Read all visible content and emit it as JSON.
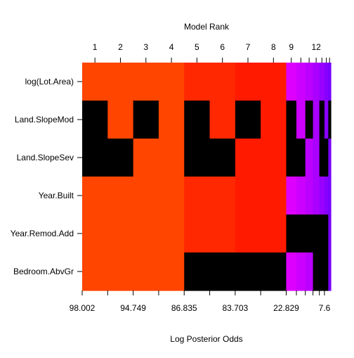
{
  "chart_data": {
    "type": "heatmap",
    "title": "",
    "xlabel_top": "Model Rank",
    "xlabel_bottom": "Log Posterior Odds",
    "ylabel": "",
    "variables": [
      "log(Lot.Area)",
      "Land.SlopeMod",
      "Land.SlopeSev",
      "Year.Built",
      "Year.Remod.Add",
      "Bedroom.AbvGr"
    ],
    "top_ticks": [
      {
        "label": "1",
        "pos": 0.5
      },
      {
        "label": "2",
        "pos": 1.5
      },
      {
        "label": "3",
        "pos": 2.5
      },
      {
        "label": "4",
        "pos": 3.5
      },
      {
        "label": "5",
        "pos": 4.5
      },
      {
        "label": "6",
        "pos": 5.5
      },
      {
        "label": "7",
        "pos": 6.5
      },
      {
        "label": "8",
        "pos": 7.5
      },
      {
        "label": "9",
        "pos": 8.5
      },
      {
        "label": "",
        "pos": 9.5
      },
      {
        "label": "",
        "pos": 10.5
      },
      {
        "label": "12",
        "pos": 11.5
      },
      {
        "label": "",
        "pos": 12.5
      },
      {
        "label": "",
        "pos": 13.5
      },
      {
        "label": "",
        "pos": 14.5
      }
    ],
    "bottom_ticks": [
      {
        "label": "98.002",
        "pos": 0
      },
      {
        "label": "",
        "pos": 1
      },
      {
        "label": "94.749",
        "pos": 2
      },
      {
        "label": "",
        "pos": 3
      },
      {
        "label": "86.835",
        "pos": 4
      },
      {
        "label": "",
        "pos": 5
      },
      {
        "label": "83.703",
        "pos": 6
      },
      {
        "label": "",
        "pos": 7
      },
      {
        "label": "22.829",
        "pos": 8
      },
      {
        "label": "",
        "pos": 9
      },
      {
        "label": "",
        "pos": 10
      },
      {
        "label": "",
        "pos": 11
      },
      {
        "label": "",
        "pos": 12
      },
      {
        "label": "7.6",
        "pos": 13
      }
    ],
    "column_widths": [
      1,
      1,
      1,
      1,
      1,
      1,
      1,
      1,
      0.4,
      0.35,
      0.3,
      0.25,
      0.2,
      0.15,
      0.1
    ],
    "colors": [
      "#FF4500",
      "#FF4500",
      "#FF4500",
      "#FF4500",
      "#FF2800",
      "#FF2800",
      "#FF1A00",
      "#FF1A00",
      "#DD00FF",
      "#CC00FF",
      "#BB00FF",
      "#AA00FF",
      "#9900FF",
      "#8800FF",
      "#7700FF"
    ],
    "missing_color": "#000000",
    "inclusion": [
      [
        1,
        1,
        1,
        1,
        1,
        1,
        1,
        1,
        1,
        1,
        1,
        1,
        1,
        1,
        1
      ],
      [
        0,
        1,
        0,
        1,
        0,
        1,
        0,
        1,
        0,
        1,
        0,
        1,
        0,
        1,
        0
      ],
      [
        0,
        0,
        1,
        1,
        0,
        0,
        1,
        1,
        0,
        0,
        1,
        1,
        0,
        0,
        1
      ],
      [
        1,
        1,
        1,
        1,
        1,
        1,
        1,
        1,
        1,
        1,
        1,
        1,
        1,
        1,
        1
      ],
      [
        1,
        1,
        1,
        1,
        1,
        1,
        1,
        1,
        0,
        0,
        0,
        0,
        0,
        0,
        1
      ],
      [
        1,
        1,
        1,
        1,
        0,
        0,
        0,
        0,
        1,
        1,
        1,
        0,
        0,
        0,
        1
      ]
    ]
  }
}
